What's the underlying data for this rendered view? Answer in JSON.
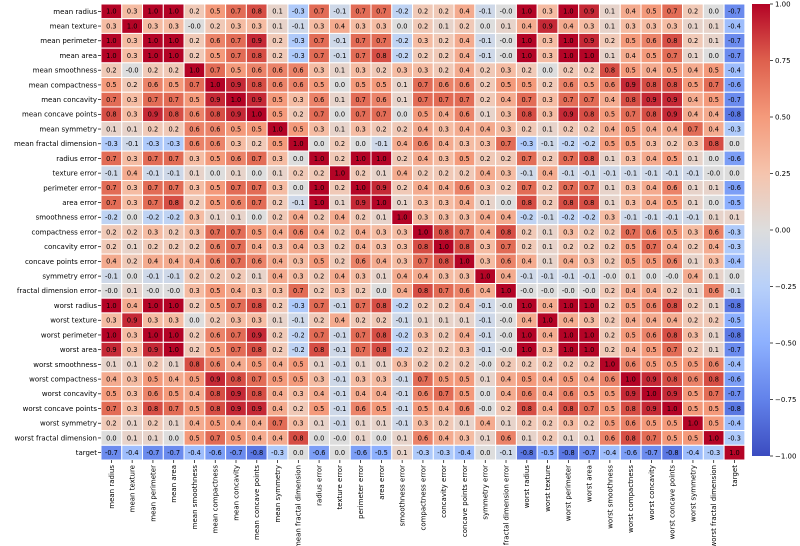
{
  "chart_data": {
    "type": "heatmap",
    "title": "",
    "xlabel": "",
    "ylabel": "",
    "labels": [
      "mean radius",
      "mean texture",
      "mean perimeter",
      "mean area",
      "mean smoothness",
      "mean compactness",
      "mean concavity",
      "mean concave points",
      "mean symmetry",
      "mean fractal dimension",
      "radius error",
      "texture error",
      "perimeter error",
      "area error",
      "smoothness error",
      "compactness error",
      "concavity error",
      "concave points error",
      "symmetry error",
      "fractal dimension error",
      "worst radius",
      "worst texture",
      "worst perimeter",
      "worst area",
      "worst smoothness",
      "worst compactness",
      "worst concavity",
      "worst concave points",
      "worst symmetry",
      "worst fractal dimension",
      "target"
    ],
    "values": [
      [
        1.0,
        0.3,
        1.0,
        1.0,
        0.2,
        0.5,
        0.7,
        0.8,
        0.1,
        -0.3,
        0.7,
        -0.1,
        0.7,
        0.7,
        -0.2,
        0.2,
        0.2,
        0.4,
        -0.1,
        -0.0,
        1.0,
        0.3,
        1.0,
        0.9,
        0.1,
        0.4,
        0.5,
        0.7,
        0.2,
        0.0,
        -0.7
      ],
      [
        0.3,
        1.0,
        0.3,
        0.3,
        -0.0,
        0.2,
        0.3,
        0.3,
        0.1,
        -0.1,
        0.3,
        0.4,
        0.3,
        0.3,
        0.0,
        0.2,
        0.1,
        0.2,
        0.0,
        0.1,
        0.4,
        0.9,
        0.4,
        0.3,
        0.1,
        0.3,
        0.3,
        0.3,
        0.1,
        0.1,
        -0.4
      ],
      [
        1.0,
        0.3,
        1.0,
        1.0,
        0.2,
        0.6,
        0.7,
        0.9,
        0.2,
        -0.3,
        0.7,
        -0.1,
        0.7,
        0.7,
        -0.2,
        0.3,
        0.2,
        0.4,
        -0.1,
        -0.0,
        1.0,
        0.3,
        1.0,
        0.9,
        0.2,
        0.5,
        0.6,
        0.8,
        0.2,
        0.1,
        -0.7
      ],
      [
        1.0,
        0.3,
        1.0,
        1.0,
        0.2,
        0.5,
        0.7,
        0.8,
        0.2,
        -0.3,
        0.7,
        -0.1,
        0.7,
        0.8,
        -0.2,
        0.2,
        0.2,
        0.4,
        -0.1,
        -0.0,
        1.0,
        0.3,
        1.0,
        1.0,
        0.1,
        0.4,
        0.5,
        0.7,
        0.1,
        0.0,
        -0.7
      ],
      [
        0.2,
        -0.0,
        0.2,
        0.2,
        1.0,
        0.7,
        0.5,
        0.6,
        0.6,
        0.6,
        0.3,
        0.1,
        0.3,
        0.2,
        0.3,
        0.3,
        0.2,
        0.4,
        0.2,
        0.3,
        0.2,
        0.0,
        0.2,
        0.2,
        0.8,
        0.5,
        0.4,
        0.5,
        0.4,
        0.5,
        -0.4
      ],
      [
        0.5,
        0.2,
        0.6,
        0.5,
        0.7,
        1.0,
        0.9,
        0.8,
        0.6,
        0.6,
        0.5,
        0.0,
        0.5,
        0.5,
        0.1,
        0.7,
        0.6,
        0.6,
        0.2,
        0.5,
        0.5,
        0.2,
        0.6,
        0.5,
        0.6,
        0.9,
        0.8,
        0.8,
        0.5,
        0.7,
        -0.6
      ],
      [
        0.7,
        0.3,
        0.7,
        0.7,
        0.5,
        0.9,
        1.0,
        0.9,
        0.5,
        0.3,
        0.6,
        0.1,
        0.7,
        0.6,
        0.1,
        0.7,
        0.7,
        0.7,
        0.2,
        0.4,
        0.7,
        0.3,
        0.7,
        0.7,
        0.4,
        0.8,
        0.9,
        0.9,
        0.4,
        0.5,
        -0.7
      ],
      [
        0.8,
        0.3,
        0.9,
        0.8,
        0.6,
        0.8,
        0.9,
        1.0,
        0.5,
        0.2,
        0.7,
        0.0,
        0.7,
        0.7,
        0.0,
        0.5,
        0.4,
        0.6,
        0.1,
        0.3,
        0.8,
        0.3,
        0.9,
        0.8,
        0.5,
        0.7,
        0.8,
        0.9,
        0.4,
        0.4,
        -0.8
      ],
      [
        0.1,
        0.1,
        0.2,
        0.2,
        0.6,
        0.6,
        0.5,
        0.5,
        1.0,
        0.5,
        0.3,
        0.1,
        0.3,
        0.2,
        0.2,
        0.4,
        0.3,
        0.4,
        0.4,
        0.3,
        0.2,
        0.1,
        0.2,
        0.2,
        0.4,
        0.5,
        0.4,
        0.4,
        0.7,
        0.4,
        -0.3
      ],
      [
        -0.3,
        -0.1,
        -0.3,
        -0.3,
        0.6,
        0.6,
        0.3,
        0.2,
        0.5,
        1.0,
        0.0,
        0.2,
        0.0,
        -0.1,
        0.4,
        0.6,
        0.4,
        0.3,
        0.3,
        0.7,
        -0.3,
        -0.1,
        -0.2,
        -0.2,
        0.5,
        0.5,
        0.3,
        0.2,
        0.3,
        0.8,
        0.0
      ],
      [
        0.7,
        0.3,
        0.7,
        0.7,
        0.3,
        0.5,
        0.6,
        0.7,
        0.3,
        0.0,
        1.0,
        0.2,
        1.0,
        1.0,
        0.2,
        0.4,
        0.3,
        0.5,
        0.2,
        0.2,
        0.7,
        0.2,
        0.7,
        0.8,
        0.1,
        0.3,
        0.4,
        0.5,
        0.1,
        0.0,
        -0.6
      ],
      [
        -0.1,
        0.4,
        -0.1,
        -0.1,
        0.1,
        0.0,
        0.1,
        0.0,
        0.1,
        0.2,
        0.2,
        1.0,
        0.2,
        0.1,
        0.4,
        0.2,
        0.2,
        0.2,
        0.4,
        0.3,
        -0.1,
        0.4,
        -0.1,
        -0.1,
        -0.1,
        -0.1,
        -0.1,
        -0.1,
        -0.1,
        -0.0,
        0.0
      ],
      [
        0.7,
        0.3,
        0.7,
        0.7,
        0.3,
        0.5,
        0.7,
        0.7,
        0.3,
        0.0,
        1.0,
        0.2,
        1.0,
        0.9,
        0.2,
        0.4,
        0.4,
        0.6,
        0.3,
        0.2,
        0.7,
        0.2,
        0.7,
        0.7,
        0.1,
        0.3,
        0.4,
        0.6,
        0.1,
        0.1,
        -0.6
      ],
      [
        0.7,
        0.3,
        0.7,
        0.8,
        0.2,
        0.5,
        0.6,
        0.7,
        0.2,
        -0.1,
        1.0,
        0.1,
        0.9,
        1.0,
        0.1,
        0.3,
        0.3,
        0.4,
        0.1,
        0.0,
        0.8,
        0.2,
        0.8,
        0.8,
        0.1,
        0.3,
        0.4,
        0.5,
        0.1,
        0.0,
        -0.5
      ],
      [
        -0.2,
        0.0,
        -0.2,
        -0.2,
        0.3,
        0.1,
        0.1,
        0.0,
        0.2,
        0.4,
        0.2,
        0.4,
        0.2,
        0.1,
        1.0,
        0.3,
        0.3,
        0.3,
        0.4,
        0.4,
        -0.2,
        -0.1,
        -0.2,
        -0.2,
        0.3,
        -0.1,
        -0.1,
        -0.1,
        -0.1,
        0.1,
        0.1
      ],
      [
        0.2,
        0.2,
        0.3,
        0.2,
        0.3,
        0.7,
        0.7,
        0.5,
        0.4,
        0.6,
        0.4,
        0.2,
        0.4,
        0.3,
        0.3,
        1.0,
        0.8,
        0.7,
        0.4,
        0.8,
        0.2,
        0.1,
        0.3,
        0.2,
        0.2,
        0.7,
        0.6,
        0.5,
        0.3,
        0.6,
        -0.3
      ],
      [
        0.2,
        0.1,
        0.2,
        0.2,
        0.2,
        0.6,
        0.7,
        0.4,
        0.3,
        0.4,
        0.3,
        0.2,
        0.4,
        0.3,
        0.3,
        0.8,
        1.0,
        0.8,
        0.3,
        0.7,
        0.2,
        0.1,
        0.2,
        0.2,
        0.2,
        0.5,
        0.7,
        0.4,
        0.2,
        0.4,
        -0.3
      ],
      [
        0.4,
        0.2,
        0.4,
        0.4,
        0.4,
        0.6,
        0.7,
        0.6,
        0.4,
        0.3,
        0.5,
        0.2,
        0.6,
        0.4,
        0.3,
        0.7,
        0.8,
        1.0,
        0.3,
        0.6,
        0.4,
        0.1,
        0.4,
        0.3,
        0.2,
        0.5,
        0.5,
        0.6,
        0.1,
        0.3,
        -0.4
      ],
      [
        -0.1,
        0.0,
        -0.1,
        -0.1,
        0.2,
        0.2,
        0.2,
        0.1,
        0.4,
        0.3,
        0.2,
        0.4,
        0.3,
        0.1,
        0.4,
        0.4,
        0.3,
        0.3,
        1.0,
        0.4,
        -0.1,
        -0.1,
        -0.1,
        -0.1,
        -0.0,
        0.1,
        0.0,
        -0.0,
        0.4,
        0.1,
        0.0
      ],
      [
        -0.0,
        0.1,
        -0.0,
        -0.0,
        0.3,
        0.5,
        0.4,
        0.3,
        0.3,
        0.7,
        0.2,
        0.3,
        0.2,
        0.0,
        0.4,
        0.8,
        0.7,
        0.6,
        0.4,
        1.0,
        -0.0,
        -0.0,
        -0.0,
        -0.0,
        0.2,
        0.4,
        0.4,
        0.2,
        0.1,
        0.6,
        -0.1
      ],
      [
        1.0,
        0.4,
        1.0,
        1.0,
        0.2,
        0.5,
        0.7,
        0.8,
        0.2,
        -0.3,
        0.7,
        -0.1,
        0.7,
        0.8,
        -0.2,
        0.2,
        0.2,
        0.4,
        -0.1,
        -0.0,
        1.0,
        0.4,
        1.0,
        1.0,
        0.2,
        0.5,
        0.6,
        0.8,
        0.2,
        0.1,
        -0.8
      ],
      [
        0.3,
        0.9,
        0.3,
        0.3,
        0.0,
        0.2,
        0.3,
        0.3,
        0.1,
        -0.1,
        0.2,
        0.4,
        0.2,
        0.2,
        -0.1,
        0.1,
        0.1,
        0.1,
        -0.1,
        -0.0,
        0.4,
        1.0,
        0.4,
        0.3,
        0.2,
        0.4,
        0.4,
        0.4,
        0.2,
        0.2,
        -0.5
      ],
      [
        1.0,
        0.3,
        1.0,
        1.0,
        0.2,
        0.6,
        0.7,
        0.9,
        0.2,
        -0.2,
        0.7,
        -0.1,
        0.7,
        0.8,
        -0.2,
        0.3,
        0.2,
        0.4,
        -0.1,
        -0.0,
        1.0,
        0.4,
        1.0,
        1.0,
        0.2,
        0.5,
        0.6,
        0.8,
        0.3,
        0.1,
        -0.8
      ],
      [
        0.9,
        0.3,
        0.9,
        1.0,
        0.2,
        0.5,
        0.7,
        0.8,
        0.2,
        -0.2,
        0.8,
        -0.1,
        0.7,
        0.8,
        -0.2,
        0.2,
        0.2,
        0.3,
        -0.1,
        -0.0,
        1.0,
        0.3,
        1.0,
        1.0,
        0.2,
        0.4,
        0.5,
        0.7,
        0.2,
        0.1,
        -0.7
      ],
      [
        0.1,
        0.1,
        0.2,
        0.1,
        0.8,
        0.6,
        0.4,
        0.5,
        0.4,
        0.5,
        0.1,
        -0.1,
        0.1,
        0.1,
        0.3,
        0.2,
        0.2,
        0.2,
        -0.0,
        0.2,
        0.2,
        0.2,
        0.2,
        0.2,
        1.0,
        0.6,
        0.5,
        0.5,
        0.5,
        0.6,
        -0.4
      ],
      [
        0.4,
        0.3,
        0.5,
        0.4,
        0.5,
        0.9,
        0.8,
        0.7,
        0.5,
        0.5,
        0.3,
        -0.1,
        0.3,
        0.3,
        -0.1,
        0.7,
        0.5,
        0.5,
        0.1,
        0.4,
        0.5,
        0.4,
        0.5,
        0.4,
        0.6,
        1.0,
        0.9,
        0.8,
        0.6,
        0.8,
        -0.6
      ],
      [
        0.5,
        0.3,
        0.6,
        0.5,
        0.4,
        0.8,
        0.9,
        0.8,
        0.4,
        0.3,
        0.4,
        -0.1,
        0.4,
        0.4,
        -0.1,
        0.6,
        0.7,
        0.5,
        0.0,
        0.4,
        0.6,
        0.4,
        0.6,
        0.5,
        0.5,
        0.9,
        1.0,
        0.9,
        0.5,
        0.7,
        -0.7
      ],
      [
        0.7,
        0.3,
        0.8,
        0.7,
        0.5,
        0.8,
        0.9,
        0.9,
        0.4,
        0.2,
        0.5,
        -0.1,
        0.6,
        0.5,
        -0.1,
        0.5,
        0.4,
        0.6,
        -0.0,
        0.2,
        0.8,
        0.4,
        0.8,
        0.7,
        0.5,
        0.8,
        0.9,
        1.0,
        0.5,
        0.5,
        -0.8
      ],
      [
        0.2,
        0.1,
        0.2,
        0.1,
        0.4,
        0.5,
        0.4,
        0.4,
        0.7,
        0.3,
        0.1,
        -0.1,
        0.1,
        0.1,
        -0.1,
        0.3,
        0.2,
        0.1,
        0.4,
        0.1,
        0.2,
        0.2,
        0.3,
        0.2,
        0.5,
        0.6,
        0.5,
        0.5,
        1.0,
        0.5,
        -0.4
      ],
      [
        0.0,
        0.1,
        0.1,
        0.0,
        0.5,
        0.7,
        0.5,
        0.4,
        0.4,
        0.8,
        0.0,
        -0.0,
        0.1,
        0.0,
        0.1,
        0.6,
        0.4,
        0.3,
        0.1,
        0.6,
        0.1,
        0.2,
        0.1,
        0.1,
        0.6,
        0.8,
        0.7,
        0.5,
        0.5,
        1.0,
        -0.3
      ],
      [
        -0.7,
        -0.4,
        -0.7,
        -0.7,
        -0.4,
        -0.6,
        -0.7,
        -0.8,
        -0.3,
        0.0,
        -0.6,
        0.0,
        -0.6,
        -0.5,
        0.1,
        -0.3,
        -0.3,
        -0.4,
        0.0,
        -0.1,
        -0.8,
        -0.5,
        -0.8,
        -0.7,
        -0.4,
        -0.6,
        -0.7,
        -0.8,
        -0.4,
        -0.3,
        1.0
      ]
    ],
    "vmin": -1.0,
    "vmax": 1.0,
    "colormap": "coolwarm",
    "annotation_format": "0.1f",
    "colorbar_ticks": [
      "1.00",
      "0.75",
      "0.50",
      "0.25",
      "0.00",
      "−0.25",
      "−0.50",
      "−0.75",
      "−1.00"
    ],
    "grid_line_color": "#ffffff"
  }
}
